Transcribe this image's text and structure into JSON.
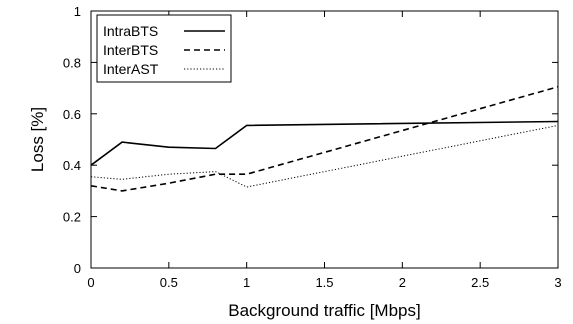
{
  "chart_data": {
    "type": "line",
    "title": "",
    "xlabel": "Background traffic [Mbps]",
    "ylabel": "Loss [%]",
    "xlim": [
      0,
      3
    ],
    "ylim": [
      0,
      1
    ],
    "x_ticks": [
      0,
      0.5,
      1,
      1.5,
      2,
      2.5,
      3
    ],
    "x_tick_labels": [
      "0",
      "0.5",
      "1",
      "1.5",
      "2",
      "2.5",
      "3"
    ],
    "y_ticks": [
      0,
      0.2,
      0.4,
      0.6,
      0.8,
      1
    ],
    "y_tick_labels": [
      "0",
      "0.2",
      "0.4",
      "0.6",
      "0.8",
      "1"
    ],
    "grid": false,
    "legend_position": "top-left",
    "series": [
      {
        "name": "IntraBTS",
        "style": "solid",
        "x": [
          0,
          0.2,
          0.5,
          0.8,
          1,
          3
        ],
        "y": [
          0.4,
          0.49,
          0.47,
          0.465,
          0.555,
          0.57
        ]
      },
      {
        "name": "InterBTS",
        "style": "dashed",
        "x": [
          0,
          0.2,
          0.5,
          0.8,
          1,
          3
        ],
        "y": [
          0.32,
          0.3,
          0.33,
          0.365,
          0.365,
          0.705
        ]
      },
      {
        "name": "InterAST",
        "style": "dotted",
        "x": [
          0,
          0.2,
          0.5,
          0.8,
          1,
          3
        ],
        "y": [
          0.355,
          0.345,
          0.365,
          0.375,
          0.315,
          0.555
        ]
      }
    ]
  }
}
